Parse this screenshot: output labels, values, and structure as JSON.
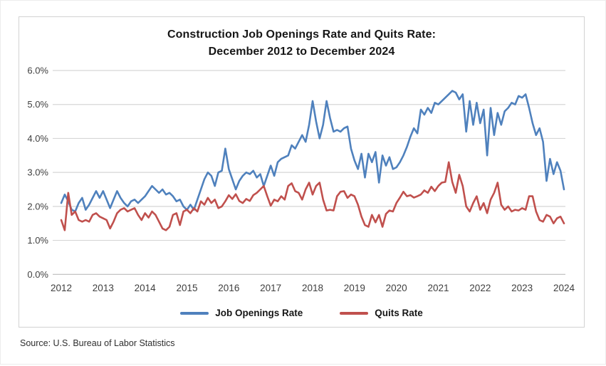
{
  "title": {
    "line1": "Construction Job Openings Rate and Quits Rate:",
    "line2": "December 2012 to December 2024"
  },
  "source_note": "Source: U.S. Bureau of Labor Statistics",
  "colors": {
    "grid": "#d6d6d6",
    "axis_line": "#bdbdbd",
    "tick_text": "#3f3f3f",
    "job_openings": "#4F81BD",
    "quits": "#C0504D"
  },
  "chart_data": {
    "type": "line",
    "title": "Construction Job Openings Rate and Quits Rate: December 2012 to December 2024",
    "x_unit": "monthly",
    "x_start": "December 2012",
    "x_end": "December 2024",
    "x_tick_labels": [
      "2012",
      "2013",
      "2014",
      "2015",
      "2016",
      "2017",
      "2018",
      "2019",
      "2020",
      "2021",
      "2022",
      "2023",
      "2024"
    ],
    "y_tick_labels_desc": [
      "6.0%",
      "5.0%",
      "4.0%",
      "3.0%",
      "2.0%",
      "1.0%",
      "0.0%"
    ],
    "ylim": [
      0.0,
      6.0
    ],
    "grid": true,
    "legend_position": "bottom",
    "series": [
      {
        "name": "Job Openings Rate",
        "color": "#4F81BD",
        "values": [
          2.1,
          2.35,
          2.15,
          1.9,
          1.85,
          2.1,
          2.25,
          1.9,
          2.05,
          2.25,
          2.45,
          2.25,
          2.45,
          2.2,
          1.95,
          2.2,
          2.45,
          2.25,
          2.1,
          2.0,
          2.15,
          2.2,
          2.1,
          2.2,
          2.3,
          2.45,
          2.6,
          2.5,
          2.4,
          2.5,
          2.35,
          2.4,
          2.3,
          2.15,
          2.2,
          2.0,
          1.9,
          2.05,
          1.9,
          2.2,
          2.5,
          2.8,
          3.0,
          2.9,
          2.6,
          3.0,
          3.05,
          3.7,
          3.1,
          2.8,
          2.5,
          2.75,
          2.9,
          3.0,
          2.95,
          3.05,
          2.85,
          2.95,
          2.6,
          2.9,
          3.2,
          2.9,
          3.3,
          3.4,
          3.45,
          3.5,
          3.8,
          3.7,
          3.9,
          4.1,
          3.9,
          4.4,
          5.1,
          4.5,
          4.0,
          4.4,
          5.1,
          4.6,
          4.2,
          4.25,
          4.2,
          4.3,
          4.35,
          3.7,
          3.35,
          3.1,
          3.55,
          2.85,
          3.55,
          3.3,
          3.6,
          2.7,
          3.5,
          3.2,
          3.45,
          3.1,
          3.15,
          3.3,
          3.5,
          3.75,
          4.05,
          4.3,
          4.15,
          4.85,
          4.7,
          4.9,
          4.75,
          5.05,
          5.0,
          5.1,
          5.2,
          5.3,
          5.4,
          5.35,
          5.15,
          5.3,
          4.2,
          5.1,
          4.4,
          5.05,
          4.45,
          4.85,
          3.5,
          4.9,
          4.1,
          4.75,
          4.4,
          4.8,
          4.9,
          5.05,
          5.0,
          5.25,
          5.2,
          5.3,
          4.9,
          4.45,
          4.1,
          4.3,
          3.9,
          2.75,
          3.4,
          2.95,
          3.3,
          3.05,
          2.5
        ]
      },
      {
        "name": "Quits Rate",
        "color": "#C0504D",
        "values": [
          1.6,
          1.3,
          2.4,
          1.75,
          1.85,
          1.6,
          1.55,
          1.6,
          1.55,
          1.75,
          1.8,
          1.7,
          1.65,
          1.6,
          1.35,
          1.55,
          1.8,
          1.9,
          1.95,
          1.85,
          1.9,
          1.95,
          1.75,
          1.6,
          1.8,
          1.67,
          1.85,
          1.75,
          1.55,
          1.35,
          1.3,
          1.4,
          1.75,
          1.8,
          1.45,
          1.85,
          1.9,
          1.8,
          1.95,
          1.85,
          2.15,
          2.05,
          2.25,
          2.1,
          2.2,
          1.95,
          2.0,
          2.15,
          2.33,
          2.22,
          2.36,
          2.16,
          2.1,
          2.22,
          2.16,
          2.33,
          2.4,
          2.5,
          2.6,
          2.3,
          2.02,
          2.2,
          2.15,
          2.3,
          2.2,
          2.6,
          2.68,
          2.45,
          2.4,
          2.2,
          2.5,
          2.7,
          2.35,
          2.6,
          2.7,
          2.2,
          1.88,
          1.9,
          1.88,
          2.3,
          2.43,
          2.45,
          2.25,
          2.35,
          2.3,
          2.05,
          1.7,
          1.45,
          1.4,
          1.75,
          1.53,
          1.75,
          1.4,
          1.78,
          1.88,
          1.85,
          2.1,
          2.26,
          2.43,
          2.3,
          2.33,
          2.26,
          2.3,
          2.35,
          2.47,
          2.4,
          2.58,
          2.45,
          2.6,
          2.7,
          2.72,
          3.3,
          2.72,
          2.4,
          2.93,
          2.6,
          2.0,
          1.85,
          2.1,
          2.3,
          1.9,
          2.1,
          1.8,
          2.2,
          2.4,
          2.7,
          2.05,
          1.9,
          2.0,
          1.85,
          1.9,
          1.88,
          1.95,
          1.9,
          2.3,
          2.3,
          1.85,
          1.6,
          1.55,
          1.75,
          1.7,
          1.5,
          1.65,
          1.7,
          1.5
        ]
      }
    ]
  }
}
